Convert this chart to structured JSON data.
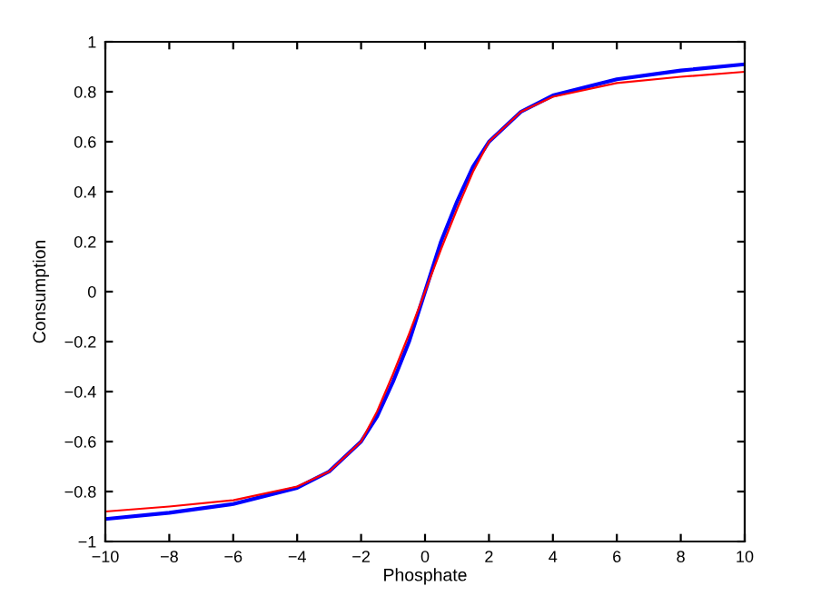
{
  "chart_data": {
    "type": "line",
    "xlabel": "Phosphate",
    "ylabel": "Consumption",
    "x": [
      -10,
      -8,
      -6,
      -4,
      -3,
      -2,
      -1.5,
      -1,
      -0.5,
      0,
      0.5,
      1,
      1.5,
      2,
      3,
      4,
      6,
      8,
      10
    ],
    "series": [
      {
        "color": "#0000ff",
        "values": [
          -0.91,
          -0.885,
          -0.85,
          -0.785,
          -0.72,
          -0.6,
          -0.5,
          -0.36,
          -0.2,
          0,
          0.2,
          0.36,
          0.5,
          0.6,
          0.72,
          0.785,
          0.85,
          0.885,
          0.91
        ]
      },
      {
        "color": "#ff0000",
        "values": [
          -0.88,
          -0.86,
          -0.835,
          -0.78,
          -0.72,
          -0.6,
          -0.48,
          -0.33,
          -0.17,
          0,
          0.17,
          0.33,
          0.48,
          0.6,
          0.72,
          0.78,
          0.835,
          0.86,
          0.88
        ]
      }
    ],
    "xlim": [
      -10,
      10
    ],
    "ylim": [
      -1,
      1
    ],
    "xticks": [
      -10,
      -8,
      -6,
      -4,
      -2,
      0,
      2,
      4,
      6,
      8,
      10
    ],
    "yticks": [
      -1,
      -0.8,
      -0.6,
      -0.4,
      -0.2,
      0,
      0.2,
      0.4,
      0.6,
      0.8,
      1
    ],
    "grid": false,
    "legend": false,
    "marker": "none",
    "line_style": "solid"
  }
}
